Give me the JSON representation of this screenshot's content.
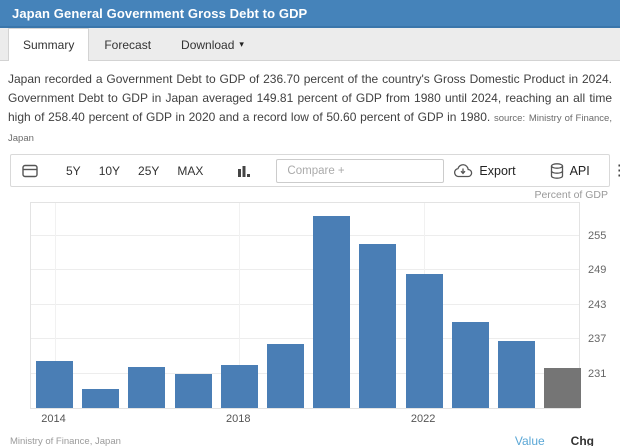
{
  "header": {
    "title": "Japan General Government Gross Debt to GDP"
  },
  "tabs": [
    {
      "label": "Summary"
    },
    {
      "label": "Forecast"
    },
    {
      "label": "Download"
    }
  ],
  "icons": {
    "download_caret": "▾",
    "kebab_glyph": "⋮"
  },
  "description": {
    "text": "Japan recorded a Government Debt to GDP of 236.70 percent of the country's Gross Domestic Product in 2024. Government Debt to GDP in Japan averaged 149.81 percent of GDP from 1980 until 2024, reaching an all time high of 258.40 percent of GDP in 2020 and a record low of 50.60 percent of GDP in 1980.",
    "source_label": "source:",
    "source": "Ministry of Finance, Japan"
  },
  "toolbar": {
    "ranges": [
      "5Y",
      "10Y",
      "25Y",
      "MAX"
    ],
    "compare_placeholder": "Compare +",
    "export_label": "Export",
    "api_label": "API"
  },
  "chart": {
    "unit_label": "Percent of GDP",
    "source": "Ministry of Finance, Japan",
    "value_label": "Value",
    "chg_label": "Chg"
  },
  "chart_data": {
    "type": "bar",
    "title": "Japan General Government Gross Debt to GDP",
    "ylabel": "Percent of GDP",
    "categories": [
      "2014",
      "2015",
      "2016",
      "2017",
      "2018",
      "2019",
      "2020",
      "2021",
      "2022",
      "2023",
      "2024",
      "2025"
    ],
    "values": [
      233.1,
      228.3,
      232.2,
      231.0,
      232.4,
      236.1,
      258.4,
      253.5,
      248.3,
      240.0,
      236.7,
      232.0
    ],
    "forecast_indices": [
      11
    ],
    "colors": {
      "value": "#4a7eb5",
      "forecast": "#757575"
    },
    "ylim": [
      225,
      261
    ],
    "yticks": [
      231,
      237,
      243,
      249,
      255
    ],
    "xticks": [
      "2014",
      "2018",
      "2022"
    ],
    "grid": true,
    "legend": "none"
  }
}
